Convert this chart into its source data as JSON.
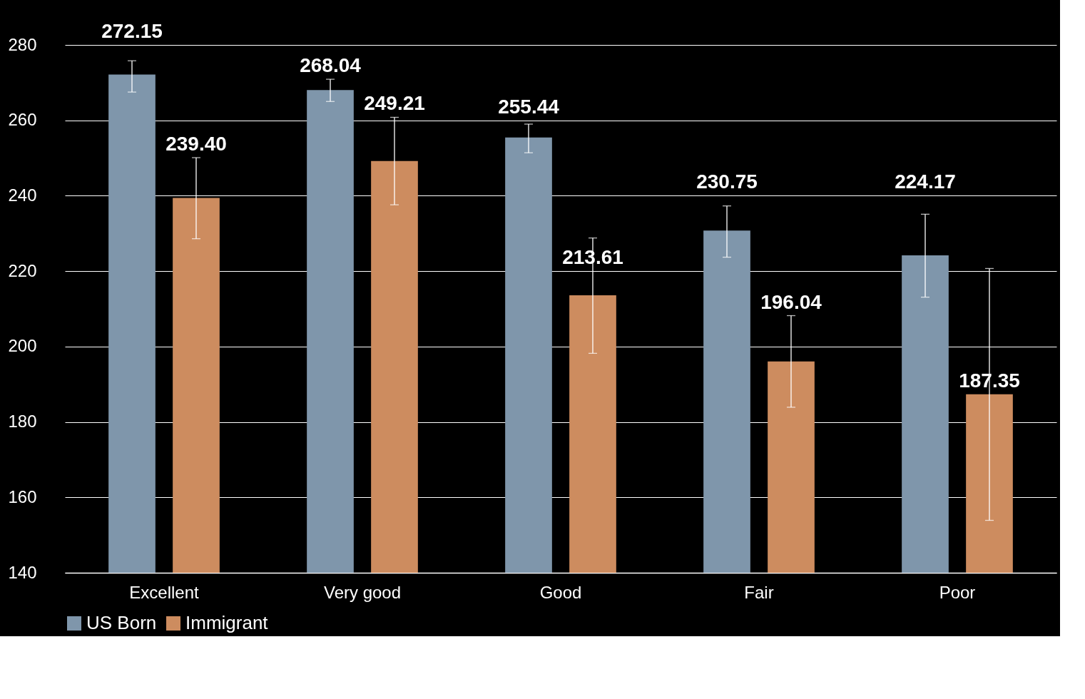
{
  "chart_data": {
    "type": "bar",
    "categories": [
      "Excellent",
      "Very good",
      "Good",
      "Fair",
      "Poor"
    ],
    "series": [
      {
        "name": "US Born",
        "color": "#7f96ab",
        "values": [
          272.15,
          268.04,
          255.44,
          230.75,
          224.17
        ],
        "value_labels": [
          "272.15",
          "268.04",
          "255.44",
          "230.75",
          "224.17"
        ],
        "errors": [
          [
            267.5,
            275.8
          ],
          [
            265.0,
            270.9
          ],
          [
            251.4,
            259.0
          ],
          [
            223.7,
            237.3
          ],
          [
            213.1,
            235.1
          ]
        ]
      },
      {
        "name": "Immigrant",
        "color": "#cd8c5f",
        "values": [
          239.4,
          249.21,
          213.61,
          196.04,
          187.35
        ],
        "value_labels": [
          "239.40",
          "249.21",
          "213.61",
          "196.04",
          "187.35"
        ],
        "errors": [
          [
            228.6,
            250.1
          ],
          [
            237.6,
            260.8
          ],
          [
            198.2,
            228.8
          ],
          [
            183.9,
            208.2
          ],
          [
            153.9,
            220.7
          ]
        ]
      }
    ],
    "ylim": [
      140,
      280
    ],
    "yticks": [
      140,
      160,
      180,
      200,
      220,
      240,
      260,
      280
    ],
    "grid": "y",
    "legend": "bottom"
  }
}
